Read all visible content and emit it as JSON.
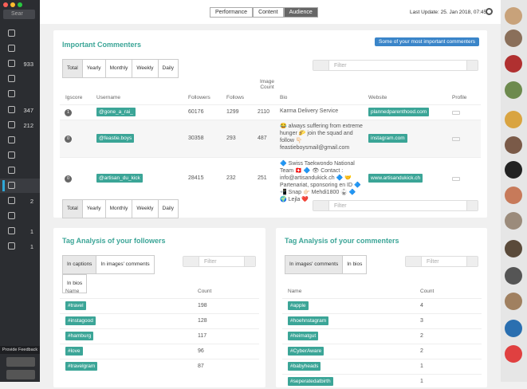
{
  "sidebar": {
    "search": "Sear",
    "counts": [
      "933",
      "347",
      "212",
      "2",
      "1",
      "1"
    ],
    "feedback": "Provide Feedback"
  },
  "topbar": {
    "tabs": [
      "Performance",
      "Content",
      "Audience"
    ],
    "last_update": "Last Update: 25. Jan 2018, 07:45"
  },
  "commenters": {
    "title": "Important Commenters",
    "button": "Some of your most important commenters",
    "periods": [
      "Total",
      "Yearly",
      "Monthly",
      "Weekly",
      "Daily"
    ],
    "filter": "Filter",
    "columns": [
      "Igscore",
      "Username",
      "Followers",
      "Follows",
      "Image Count",
      "Bio",
      "Website",
      "Profile"
    ],
    "rows": [
      [
        "1",
        "@gone_a_rai_",
        "60176",
        "1299",
        "2110",
        "Karma Delivery Service",
        "plannedparenthood.com"
      ],
      [
        "0",
        "@feastie.boys",
        "30358",
        "293",
        "487",
        "😂 always suffering from extreme hunger 🌮 join the squad and follow 👇🏻 feastieboysmail@gmail.com",
        "instagram.com"
      ],
      [
        "0",
        "@artisan_du_kick",
        "28415",
        "232",
        "251",
        "🔷 Swiss Taekwondo National Team 🇨🇭 🔷 👁 Contact : info@artisandukick.ch 🔷 🤝 Partenariat, sponsoring en ID 🔷 📲 Snap 👉🏻 Mehdi1800 🥋 🔷 🌍 Lejla ❤️",
        "www.artisandukick.ch"
      ]
    ]
  },
  "followers_tags": {
    "title": "Tag Analysis of your followers",
    "filters": [
      "In captions",
      "In images' comments",
      "In bios"
    ],
    "filter": "Filter",
    "columns": [
      "Name",
      "Count"
    ],
    "rows": [
      [
        "#travel",
        "198"
      ],
      [
        "#instagood",
        "128"
      ],
      [
        "#hamburg",
        "117"
      ],
      [
        "#love",
        "96"
      ],
      [
        "#travelgram",
        "87"
      ]
    ]
  },
  "commenters_tags": {
    "title": "Tag Analysis of your commenters",
    "filters": [
      "In images' comments",
      "In bios"
    ],
    "filter": "Filter",
    "columns": [
      "Name",
      "Count"
    ],
    "rows": [
      [
        "#apple",
        "4"
      ],
      [
        "#hoehnstagram",
        "3"
      ],
      [
        "#heimatgut",
        "2"
      ],
      [
        "#CyberAware",
        "2"
      ],
      [
        "#babyheads",
        "1"
      ],
      [
        "#seperatedatbirth",
        "1"
      ]
    ]
  }
}
